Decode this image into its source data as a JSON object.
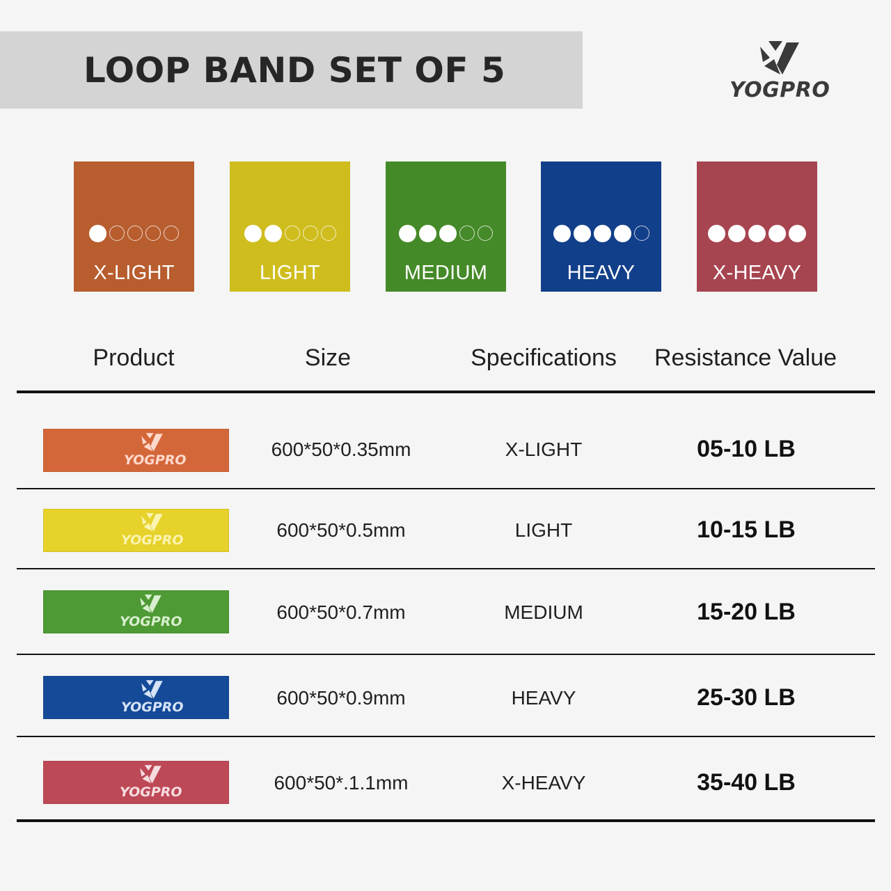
{
  "header": {
    "title": "LOOP BAND SET OF 5",
    "brand_name": "YOGPRO"
  },
  "swatches": [
    {
      "label": "X-LIGHT",
      "level": 1,
      "max_level": 5,
      "color": "#b85d2e"
    },
    {
      "label": "LIGHT",
      "level": 2,
      "max_level": 5,
      "color": "#cfbd1e"
    },
    {
      "label": "MEDIUM",
      "level": 3,
      "max_level": 5,
      "color": "#458a28"
    },
    {
      "label": "HEAVY",
      "level": 4,
      "max_level": 5,
      "color": "#123f8a"
    },
    {
      "label": "X-HEAVY",
      "level": 5,
      "max_level": 5,
      "color": "#a64450"
    }
  ],
  "table": {
    "columns": [
      "Product",
      "Size",
      "Specifications",
      "Resistance Value"
    ],
    "rows": [
      {
        "brand": "YOGPRO",
        "size": "600*50*0.35mm",
        "spec": "X-LIGHT",
        "resistance": "05-10 LB",
        "band_color": "#d4673a",
        "logo_color": "#ffd9cc"
      },
      {
        "brand": "YOGPRO",
        "size": "600*50*0.5mm",
        "spec": "LIGHT",
        "resistance": "10-15 LB",
        "band_color": "#e6d22a",
        "logo_color": "#fbf3b0"
      },
      {
        "brand": "YOGPRO",
        "size": "600*50*0.7mm",
        "spec": "MEDIUM",
        "resistance": "15-20 LB",
        "band_color": "#4e9a35",
        "logo_color": "#d9efcf"
      },
      {
        "brand": "YOGPRO",
        "size": "600*50*0.9mm",
        "spec": "HEAVY",
        "resistance": "25-30 LB",
        "band_color": "#154a98",
        "logo_color": "#d6e3f7"
      },
      {
        "brand": "YOGPRO",
        "size": "600*50*.1.1mm",
        "spec": "X-HEAVY",
        "resistance": "35-40 LB",
        "band_color": "#bd4957",
        "logo_color": "#f6dde0"
      }
    ]
  }
}
